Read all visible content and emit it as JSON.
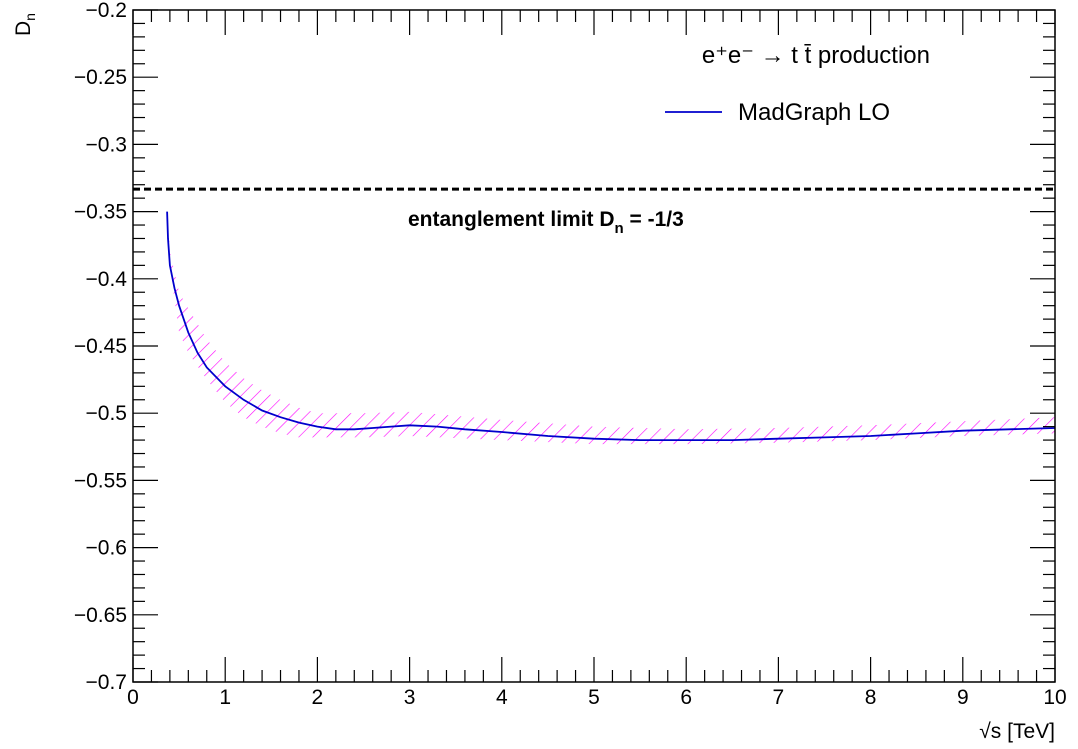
{
  "chart_data": {
    "type": "line",
    "title": "",
    "xlabel": "√s  [TeV]",
    "ylabel": "D_n",
    "xlim": [
      0,
      10
    ],
    "ylim": [
      -0.7,
      -0.2
    ],
    "x_ticks": [
      0,
      1,
      2,
      3,
      4,
      5,
      6,
      7,
      8,
      9,
      10
    ],
    "x_tick_labels": [
      "0",
      "1",
      "2",
      "3",
      "4",
      "5",
      "6",
      "7",
      "8",
      "9",
      "10"
    ],
    "y_ticks": [
      -0.7,
      -0.65,
      -0.6,
      -0.55,
      -0.5,
      -0.45,
      -0.4,
      -0.35,
      -0.3,
      -0.25,
      -0.2
    ],
    "y_tick_labels": [
      "−0.7",
      "−0.65",
      "−0.6",
      "−0.55",
      "−0.5",
      "−0.45",
      "−0.4",
      "−0.35",
      "−0.3",
      "−0.25",
      "−0.2"
    ],
    "grid": false,
    "legend_position": "top-right",
    "process_label": "e⁺e⁻ → t t̄ production",
    "series": [
      {
        "name": "MadGraph LO",
        "color": "#0000cc",
        "x": [
          0.37,
          0.38,
          0.4,
          0.45,
          0.5,
          0.6,
          0.7,
          0.8,
          1.0,
          1.2,
          1.4,
          1.6,
          1.8,
          2.0,
          2.2,
          2.4,
          2.6,
          2.8,
          3.0,
          3.3,
          3.6,
          4.0,
          4.5,
          5.0,
          5.5,
          6.0,
          6.5,
          7.0,
          7.5,
          8.0,
          8.5,
          9.0,
          9.5,
          10.0
        ],
        "y": [
          -0.35,
          -0.37,
          -0.39,
          -0.407,
          -0.42,
          -0.44,
          -0.455,
          -0.466,
          -0.48,
          -0.49,
          -0.498,
          -0.503,
          -0.507,
          -0.51,
          -0.512,
          -0.512,
          -0.511,
          -0.51,
          -0.509,
          -0.51,
          -0.512,
          -0.514,
          -0.517,
          -0.519,
          -0.52,
          -0.52,
          -0.52,
          -0.519,
          -0.518,
          -0.517,
          -0.515,
          -0.513,
          -0.512,
          -0.511
        ]
      }
    ],
    "uncertainty_band": {
      "color": "#ff00ff",
      "x": [
        0.37,
        0.4,
        0.5,
        0.6,
        0.8,
        1.0,
        1.2,
        1.4,
        1.6,
        1.8,
        2.0,
        2.5,
        3.0,
        4.0,
        5.0,
        6.0,
        7.0,
        8.0,
        9.0,
        10.0
      ],
      "low": [
        -0.355,
        -0.39,
        -0.44,
        -0.455,
        -0.475,
        -0.492,
        -0.503,
        -0.51,
        -0.515,
        -0.518,
        -0.518,
        -0.518,
        -0.517,
        -0.52,
        -0.523,
        -0.523,
        -0.522,
        -0.52,
        -0.517,
        -0.515
      ],
      "high": [
        -0.345,
        -0.38,
        -0.41,
        -0.422,
        -0.445,
        -0.462,
        -0.474,
        -0.483,
        -0.49,
        -0.496,
        -0.5,
        -0.5,
        -0.499,
        -0.505,
        -0.51,
        -0.512,
        -0.511,
        -0.509,
        -0.506,
        -0.503
      ]
    },
    "reference_line": {
      "y": -0.3333,
      "style": "dashed",
      "label": "entanglement limit D_n = -1/3"
    }
  }
}
